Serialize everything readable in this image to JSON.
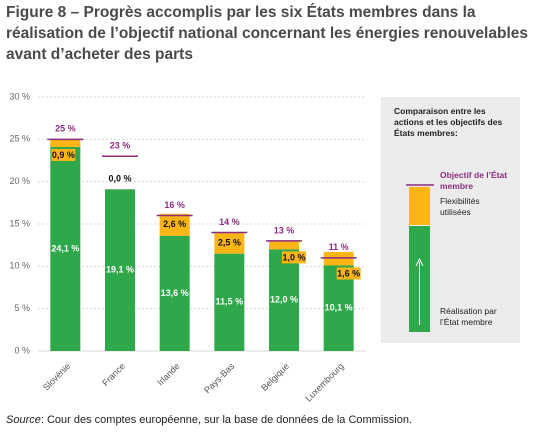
{
  "chart_data": {
    "type": "stacked-bar-target",
    "title": "Figure 8 – Progrès accomplis par les six États membres dans la réalisation de l’objectif national concernant les énergies renouvelables avant d’acheter des parts",
    "categories": [
      "Slovénie",
      "France",
      "Irlande",
      "Pays-Bas",
      "Belgique",
      "Luxembourg"
    ],
    "series": [
      {
        "name": "Réalisation par l’État membre",
        "color": "#2ea84a",
        "values": [
          24.1,
          19.1,
          13.6,
          11.5,
          12.0,
          10.1
        ],
        "value_labels": [
          "24,1 %",
          "19,1 %",
          "13,6 %",
          "11,5 %",
          "12,0 %",
          "10,1 %"
        ]
      },
      {
        "name": "Flexibilités utilisées",
        "color": "#fbb516",
        "values": [
          0.9,
          0.0,
          2.6,
          2.5,
          1.0,
          1.6
        ],
        "value_labels": [
          "0,9 %",
          "0,0 %",
          "2,6 %",
          "2,5 %",
          "1,0 %",
          "1,6 %"
        ]
      }
    ],
    "targets": {
      "name": "Objectif de l’État membre",
      "color": "#8b2d7e",
      "values": [
        25,
        23,
        16,
        14,
        13,
        11
      ],
      "value_labels": [
        "25 %",
        "23 %",
        "16 %",
        "14 %",
        "13 %",
        "11 %"
      ]
    },
    "ylim": [
      0,
      30
    ],
    "yticks": [
      {
        "value": 0,
        "label": "0 %"
      },
      {
        "value": 5,
        "label": "5 %"
      },
      {
        "value": 10,
        "label": "10 %"
      },
      {
        "value": 15,
        "label": "15 %"
      },
      {
        "value": 20,
        "label": "20 %"
      },
      {
        "value": 25,
        "label": "25 %"
      },
      {
        "value": 30,
        "label": "30 %"
      }
    ],
    "grid": true,
    "legend_title": "Comparaison entre les actions et les objectifs des États membres:",
    "source_label": "Source",
    "source_text": ": Cour des comptes européenne, sur la base de données de la Commission."
  }
}
